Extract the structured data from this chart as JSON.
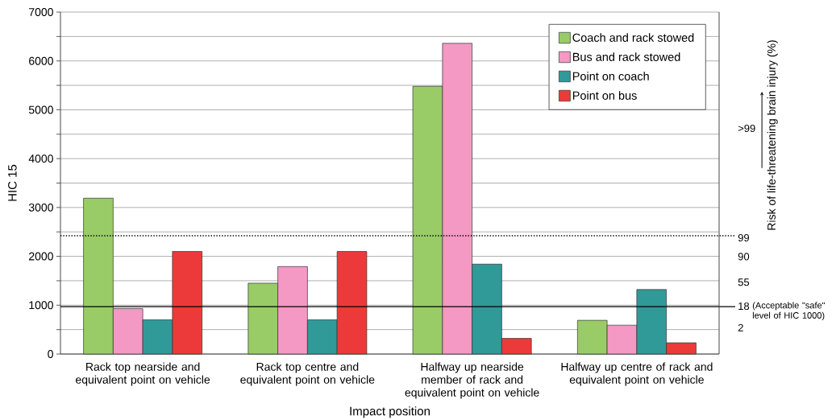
{
  "chart_data": {
    "type": "bar",
    "xlabel": "Impact position",
    "ylabel": "HIC 15",
    "y2label": "Risk of life-threatening brain injury (%)",
    "categories": [
      "Rack top nearside and equivalent point on vehicle",
      "Rack top centre and equivalent point on vehicle",
      "Halfway up nearside member of rack and equivalent point on vehicle",
      "Halfway up centre of rack and equivalent point on vehicle"
    ],
    "series": [
      {
        "name": "Coach and rack stowed",
        "color": "#99cc66",
        "values": [
          3190,
          1450,
          5480,
          690
        ]
      },
      {
        "name": "Bus and rack stowed",
        "color": "#f399c3",
        "values": [
          930,
          1790,
          6360,
          590
        ]
      },
      {
        "name": "Point on coach",
        "color": "#309a98",
        "values": [
          700,
          700,
          1840,
          1320
        ]
      },
      {
        "name": "Point on bus",
        "color": "#ec3a3a",
        "values": [
          2100,
          2100,
          320,
          230
        ]
      }
    ],
    "ylim": [
      0,
      7000
    ],
    "yticks": [
      0,
      {
        "value": 500,
        "label": null
      },
      1000,
      {
        "value": 1500,
        "label": null
      },
      2000,
      {
        "value": 2500,
        "label": null
      },
      3000,
      {
        "value": 3500,
        "label": null
      },
      4000,
      {
        "value": 4500,
        "label": null
      },
      5000,
      {
        "value": 5500,
        "label": null
      },
      6000,
      {
        "value": 6500,
        "label": null
      },
      7000
    ],
    "annotations": [
      "2",
      "18",
      "55",
      "90",
      "99",
      ">99"
    ],
    "ref_lines": [
      {
        "axis": "y",
        "value": 2420,
        "line_style": "dotted",
        "color": "#000000"
      },
      {
        "axis": "y",
        "value": 970,
        "label": "(Acceptable \"safe\" level of HIC 1000)",
        "line_style": "solid",
        "color": "#000000"
      }
    ],
    "grid": "y",
    "legend": "top right"
  }
}
